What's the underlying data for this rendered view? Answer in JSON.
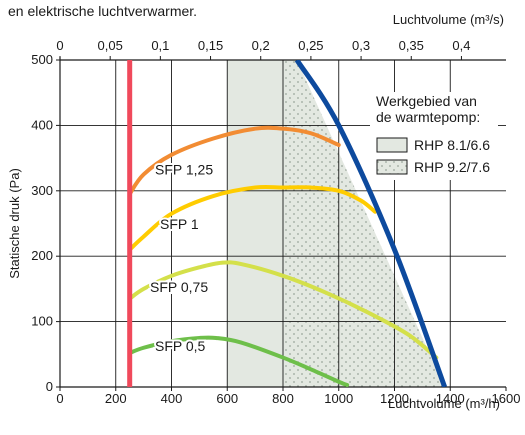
{
  "header_text": "en elektrische luchtverwarmer.",
  "chart_data": {
    "type": "line",
    "title": "",
    "xlabel_bottom": "Luchtvolume (m³/h)",
    "xlabel_top": "Luchtvolume (m³/s)",
    "ylabel": "Statische druk (Pa)",
    "xlim": [
      0,
      1600
    ],
    "x2lim": [
      0,
      0.4444
    ],
    "ylim": [
      0,
      500
    ],
    "x_ticks": [
      "0",
      "200",
      "400",
      "600",
      "800",
      "1000",
      "1200",
      "1400",
      "1600"
    ],
    "x2_ticks": [
      "0",
      "0,05",
      "0,1",
      "0,15",
      "0,2",
      "0,25",
      "0,3",
      "0,35",
      "0,4"
    ],
    "y_ticks": [
      "0",
      "100",
      "200",
      "300",
      "400",
      "500"
    ],
    "grid": true,
    "legend": {
      "title_lines": [
        "Werkgebied van",
        "de warmtepomp:"
      ],
      "position": "top-right",
      "items": [
        {
          "label": "RHP 8.1/6.6",
          "pattern": "solid"
        },
        {
          "label": "RHP 9.2/7.6",
          "pattern": "dots"
        }
      ]
    },
    "regions": [
      {
        "name": "RHP 8.1/6.6",
        "x": [
          600,
          800
        ],
        "y": [
          0,
          500
        ],
        "color": "#e3e8e1"
      },
      {
        "name": "RHP 9.2/7.6",
        "boundary": [
          [
            800,
            0
          ],
          [
            800,
            500
          ],
          [
            850,
            500
          ],
          [
            1380,
            0
          ]
        ],
        "color": "#e3e8e1",
        "pattern": "dots"
      }
    ],
    "min_line": {
      "x": 250,
      "y": [
        0,
        500
      ],
      "color": "#f0495b"
    },
    "max_line": {
      "points": [
        [
          850,
          500
        ],
        [
          1000,
          400
        ],
        [
          1200,
          210
        ],
        [
          1380,
          0
        ]
      ],
      "color": "#0d4a9e"
    },
    "series": [
      {
        "name": "SFP 1,25",
        "color": "#f28c33",
        "points": [
          [
            250,
            295
          ],
          [
            300,
            325
          ],
          [
            400,
            355
          ],
          [
            550,
            380
          ],
          [
            700,
            395
          ],
          [
            800,
            395
          ],
          [
            900,
            388
          ],
          [
            1000,
            370
          ]
        ]
      },
      {
        "name": "SFP 1",
        "color": "#ffcc00",
        "points": [
          [
            250,
            210
          ],
          [
            300,
            230
          ],
          [
            400,
            265
          ],
          [
            550,
            292
          ],
          [
            700,
            305
          ],
          [
            800,
            305
          ],
          [
            900,
            305
          ],
          [
            1000,
            300
          ],
          [
            1080,
            285
          ],
          [
            1130,
            268
          ]
        ]
      },
      {
        "name": "SFP 0,75",
        "color": "#d4e04a",
        "points": [
          [
            250,
            135
          ],
          [
            300,
            150
          ],
          [
            400,
            170
          ],
          [
            500,
            183
          ],
          [
            580,
            190
          ],
          [
            650,
            188
          ],
          [
            800,
            170
          ],
          [
            950,
            145
          ],
          [
            1100,
            115
          ],
          [
            1250,
            80
          ],
          [
            1350,
            45
          ]
        ]
      },
      {
        "name": "SFP 0,5",
        "color": "#6ebf4a",
        "points": [
          [
            250,
            52
          ],
          [
            300,
            60
          ],
          [
            400,
            70
          ],
          [
            500,
            75
          ],
          [
            560,
            75
          ],
          [
            650,
            68
          ],
          [
            800,
            45
          ],
          [
            900,
            27
          ],
          [
            1000,
            8
          ],
          [
            1030,
            3
          ]
        ]
      }
    ]
  }
}
